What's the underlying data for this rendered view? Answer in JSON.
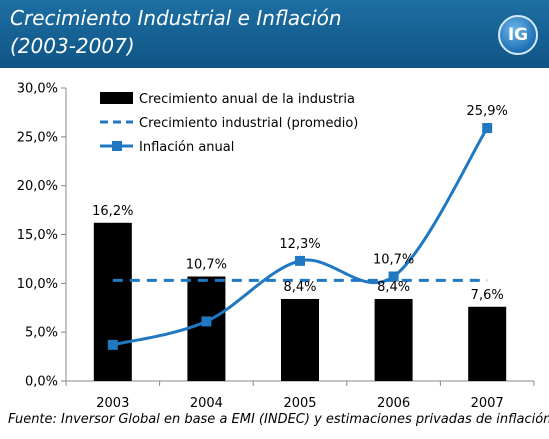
{
  "header": {
    "title_line1": "Crecimiento Industrial e Inflación",
    "title_line2": "(2003-2007)",
    "logo_text": "IG"
  },
  "source": "Fuente: Inversor Global en base a EMI (INDEC) y estimaciones privadas de inflación",
  "colors": {
    "header_bg": "#135f92",
    "bars": "#000000",
    "lines": "#1f78c1"
  },
  "chart_data": {
    "type": "bar",
    "categories": [
      "2003",
      "2004",
      "2005",
      "2006",
      "2007"
    ],
    "ylim": [
      0,
      30
    ],
    "yticks": [
      "0,0%",
      "5,0%",
      "10,0%",
      "15,0%",
      "20,0%",
      "25,0%",
      "30,0%"
    ],
    "grid": false,
    "legend_position": "top-left",
    "series": [
      {
        "name": "Crecimiento anual de la industria",
        "kind": "bar",
        "values": [
          16.2,
          10.7,
          8.4,
          8.4,
          7.6
        ],
        "labels": [
          "16,2%",
          "10,7%",
          "8,4%",
          "8,4%",
          "7,6%"
        ]
      },
      {
        "name": "Crecimiento industrial (promedio)",
        "kind": "dashed-line",
        "values": [
          10.3,
          10.3,
          10.3,
          10.3,
          10.3
        ]
      },
      {
        "name": "Inflación anual",
        "kind": "smooth-line-markers",
        "values": [
          3.7,
          6.1,
          12.3,
          10.7,
          25.9
        ],
        "labels": [
          "3,7%",
          "6,1%",
          "12,3%",
          "10,7%",
          "25,9%"
        ]
      }
    ]
  }
}
